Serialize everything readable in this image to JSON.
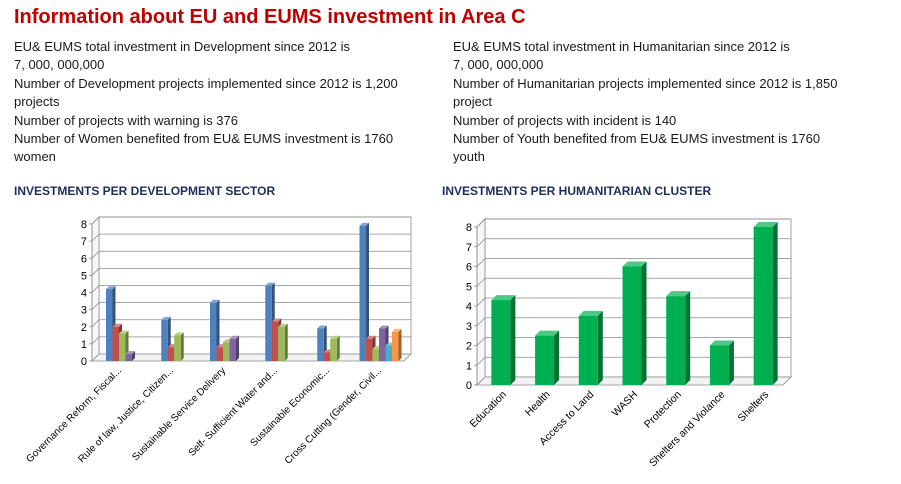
{
  "page": {
    "title": "Information about EU and EUMS investment in Area C"
  },
  "info_left": [
    "EU& EUMS total investment in Development since 2012 is",
    "7, 000, 000,000",
    "Number of Development projects implemented since 2012 is 1,200",
    "projects",
    "Number of projects with warning  is 376",
    "Number of Women benefited from EU& EUMS investment is 1760",
    "women"
  ],
  "info_right": [
    "EU& EUMS total investment in Humanitarian  since 2012 is",
    "7, 000, 000,000",
    "Number of Humanitarian  projects implemented since 2012 is 1,850",
    "project",
    "Number of projects with incident is 140",
    "Number of Youth benefited from EU& EUMS investment is 1760",
    "youth"
  ],
  "chart_data": [
    {
      "type": "bar",
      "title": "INVESTMENTS PER DEVELOPMENT SECTOR",
      "categories": [
        "Governance Reform, Fiscal...",
        "Rule of law, Justice, Citizen...",
        "Sustainable Service Delivery",
        "Self- Sufficient Water and...",
        "Sustainable Economic...",
        "Cross Cutting (Gender, Civil..."
      ],
      "series": [
        {
          "color": "#4f81bd",
          "values": [
            4.2,
            2.4,
            3.4,
            4.4,
            1.9,
            7.9
          ]
        },
        {
          "color": "#c0504d",
          "values": [
            2.0,
            0.8,
            0.8,
            2.3,
            0.5,
            1.3
          ]
        },
        {
          "color": "#9bbb59",
          "values": [
            1.6,
            1.5,
            1.1,
            2.0,
            1.3,
            0.7
          ]
        },
        {
          "color": "#8064a2",
          "values": [
            0.4,
            null,
            1.3,
            null,
            null,
            1.9
          ]
        },
        {
          "color": "#4bacc6",
          "values": [
            null,
            null,
            null,
            null,
            null,
            0.9
          ]
        },
        {
          "color": "#f79646",
          "values": [
            null,
            null,
            null,
            null,
            null,
            1.7
          ]
        }
      ],
      "yticks": [
        "0",
        "1",
        "2",
        "3",
        "4",
        "5",
        "6",
        "7",
        "8"
      ],
      "ylim": [
        0,
        8
      ],
      "grid": true
    },
    {
      "type": "bar",
      "title": "INVESTMENTS PER HUMANITARIAN CLUSTER",
      "categories": [
        "Education",
        "Health",
        "Access to Land",
        "WASH",
        "Protection",
        "Shelters and Violance",
        "Shelters"
      ],
      "values": [
        4.3,
        2.5,
        3.5,
        6.0,
        4.5,
        2.0,
        8.0
      ],
      "color": "#00b050",
      "yticks": [
        "0",
        "1",
        "2",
        "3",
        "4",
        "5",
        "6",
        "7",
        "8"
      ],
      "ylim": [
        0,
        8
      ],
      "grid": true
    }
  ]
}
